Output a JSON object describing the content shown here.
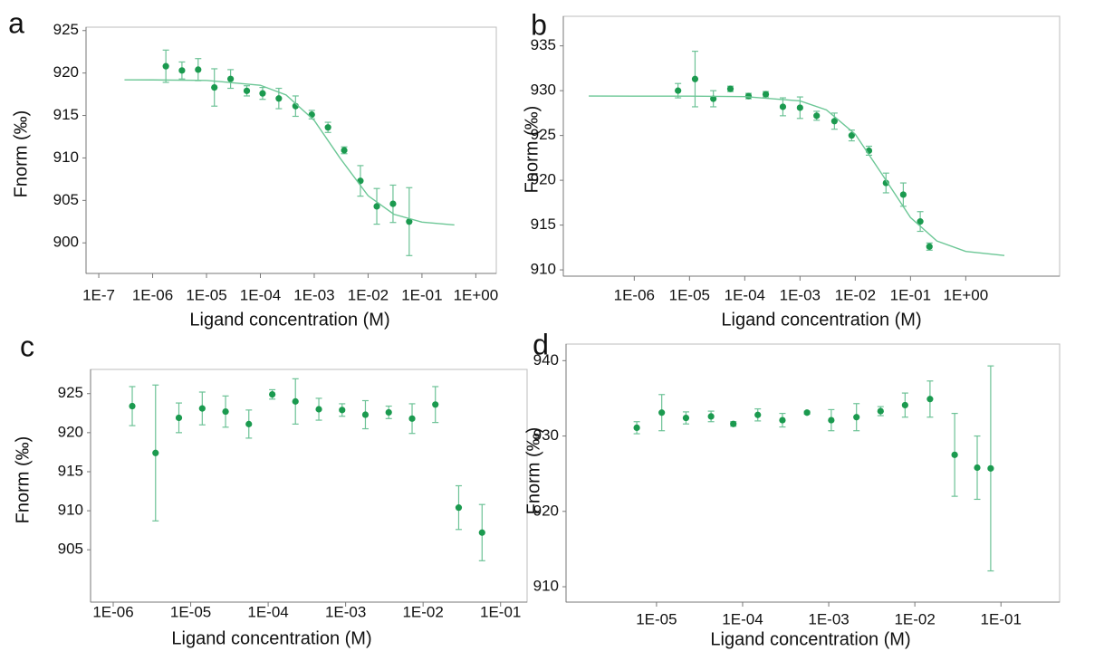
{
  "chart_data": [
    {
      "type": "scatter",
      "label": "a",
      "xlabel": "Ligand concentration (M)",
      "ylabel": "Fnorm (‰)",
      "xscale": "log",
      "xlim": [
        5.8e-08,
        2.4
      ],
      "xticks": [
        {
          "value": 1e-07,
          "label": "1E-7"
        },
        {
          "value": 1e-06,
          "label": "1E-06"
        },
        {
          "value": 1e-05,
          "label": "1E-05"
        },
        {
          "value": 0.0001,
          "label": "1E-04"
        },
        {
          "value": 0.001,
          "label": "1E-03"
        },
        {
          "value": 0.01,
          "label": "1E-02"
        },
        {
          "value": 0.1,
          "label": "1E-01"
        },
        {
          "value": 1,
          "label": "1E+00"
        }
      ],
      "ylim": [
        896.4,
        925.4
      ],
      "yticks": [
        900,
        905,
        910,
        915,
        920,
        925
      ],
      "series": [
        {
          "type": "errorbar",
          "color": "#1b9a4f",
          "errcolor": "#6cc296",
          "x": [
            1.76e-06,
            3.5e-06,
            7e-06,
            1.4e-05,
            2.8e-05,
            5.6e-05,
            0.00011,
            0.00022,
            0.00045,
            0.0009,
            0.0018,
            0.0036,
            0.0072,
            0.0145,
            0.029,
            0.058
          ],
          "values": [
            920.8,
            920.3,
            920.4,
            918.3,
            919.3,
            917.9,
            917.6,
            917.0,
            916.1,
            915.1,
            913.6,
            910.9,
            907.3,
            904.3,
            904.6,
            902.5
          ],
          "errors": [
            1.9,
            1.0,
            1.3,
            2.2,
            1.1,
            0.6,
            0.7,
            1.2,
            1.2,
            0.5,
            0.6,
            0.4,
            1.8,
            2.1,
            2.2,
            4.0
          ]
        },
        {
          "type": "line",
          "color": "#6cc796",
          "x": [
            3e-07,
            1e-06,
            1e-05,
            0.0001,
            0.0003,
            0.001,
            0.003,
            0.01,
            0.03,
            0.1,
            0.4
          ],
          "values": [
            919.2,
            919.19,
            919.13,
            918.56,
            917.42,
            914.42,
            910.0,
            905.55,
            903.37,
            902.44,
            902.11
          ]
        }
      ]
    },
    {
      "type": "scatter",
      "label": "b",
      "xlabel": "Ligand concentration (M)",
      "ylabel": "Fnorm (‰)",
      "xscale": "log",
      "xlim": [
        5.2e-08,
        50
      ],
      "xticks": [
        {
          "value": 1e-06,
          "label": "1E-06"
        },
        {
          "value": 1e-05,
          "label": "1E-05"
        },
        {
          "value": 0.0001,
          "label": "1E-04"
        },
        {
          "value": 0.001,
          "label": "1E-03"
        },
        {
          "value": 0.01,
          "label": "1E-02"
        },
        {
          "value": 0.1,
          "label": "1E-01"
        },
        {
          "value": 1,
          "label": "1E+00"
        }
      ],
      "ylim": [
        909.3,
        938.3
      ],
      "yticks": [
        910,
        915,
        920,
        925,
        930,
        935
      ],
      "series": [
        {
          "type": "errorbar",
          "color": "#1b9a4f",
          "errcolor": "#6cc296",
          "x": [
            6.2e-06,
            1.26e-05,
            2.7e-05,
            5.5e-05,
            0.000117,
            0.00024,
            0.00049,
            0.001,
            0.002,
            0.0042,
            0.0086,
            0.0177,
            0.036,
            0.074,
            0.15,
            0.22
          ],
          "values": [
            930.0,
            931.3,
            929.1,
            930.2,
            929.4,
            929.6,
            928.2,
            928.1,
            927.2,
            926.6,
            925.0,
            923.3,
            919.7,
            918.4,
            915.4,
            912.6
          ],
          "errors": [
            0.8,
            3.1,
            0.9,
            0.3,
            0.3,
            0.3,
            1.0,
            1.2,
            0.5,
            0.9,
            0.6,
            0.5,
            1.1,
            1.3,
            1.1,
            0.4
          ]
        },
        {
          "type": "line",
          "color": "#6cc796",
          "x": [
            1.5e-07,
            1e-06,
            1e-05,
            0.0001,
            0.001,
            0.003,
            0.01,
            0.03,
            0.1,
            0.3,
            1,
            5
          ],
          "values": [
            929.4,
            929.39,
            929.39,
            929.34,
            928.86,
            927.86,
            925.14,
            920.74,
            915.84,
            913.23,
            912.06,
            911.61
          ]
        }
      ]
    },
    {
      "type": "scatter",
      "label": "c",
      "xlabel": "Ligand concentration (M)",
      "ylabel": "Fnorm (‰)",
      "xscale": "log",
      "xlim": [
        5.1e-07,
        0.22
      ],
      "xticks": [
        {
          "value": 1e-06,
          "label": "1E-06"
        },
        {
          "value": 1e-05,
          "label": "1E-05"
        },
        {
          "value": 0.0001,
          "label": "1E-04"
        },
        {
          "value": 0.001,
          "label": "1E-03"
        },
        {
          "value": 0.01,
          "label": "1E-02"
        },
        {
          "value": 0.1,
          "label": "1E-01"
        }
      ],
      "ylim": [
        898.3,
        928.1
      ],
      "yticks": [
        905,
        910,
        915,
        920,
        925
      ],
      "series": [
        {
          "type": "errorbar",
          "color": "#1b9a4f",
          "errcolor": "#6cc296",
          "x": [
            1.76e-06,
            3.52e-06,
            7.04e-06,
            1.41e-05,
            2.82e-05,
            5.63e-05,
            0.000113,
            0.000225,
            0.000451,
            0.000901,
            0.0018,
            0.0036,
            0.00721,
            0.0144,
            0.0288,
            0.0577
          ],
          "values": [
            923.4,
            917.4,
            921.9,
            923.1,
            922.7,
            921.1,
            924.9,
            924.0,
            923.0,
            922.9,
            922.3,
            922.6,
            921.8,
            923.6,
            910.4,
            907.2
          ],
          "errors": [
            2.5,
            8.7,
            1.9,
            2.1,
            2.0,
            1.8,
            0.6,
            2.9,
            1.4,
            0.8,
            1.8,
            0.8,
            1.9,
            2.3,
            2.8,
            3.6
          ]
        }
      ]
    },
    {
      "type": "scatter",
      "label": "d",
      "xlabel": "Ligand concentration (M)",
      "ylabel": "Fnorm (‰)",
      "xscale": "log",
      "xlim": [
        8.9e-07,
        0.48
      ],
      "xticks": [
        {
          "value": 1e-05,
          "label": "1E-05"
        },
        {
          "value": 0.0001,
          "label": "1E-04"
        },
        {
          "value": 0.001,
          "label": "1E-03"
        },
        {
          "value": 0.01,
          "label": "1E-02"
        },
        {
          "value": 0.1,
          "label": "1E-01"
        }
      ],
      "ylim": [
        907.96,
        942.2
      ],
      "yticks": [
        910,
        920,
        930,
        940
      ],
      "series": [
        {
          "type": "errorbar",
          "color": "#1b9a4f",
          "errcolor": "#6cc296",
          "x": [
            5.9e-06,
            1.15e-05,
            2.2e-05,
            4.3e-05,
            7.8e-05,
            0.00015,
            0.00029,
            0.00056,
            0.00107,
            0.0021,
            0.004,
            0.0077,
            0.015,
            0.029,
            0.053,
            0.076
          ],
          "values": [
            931.1,
            933.1,
            932.4,
            932.6,
            931.6,
            932.8,
            932.1,
            933.1,
            932.1,
            932.5,
            933.3,
            934.1,
            934.9,
            927.5,
            925.8,
            925.7
          ],
          "errors": [
            0.8,
            2.4,
            0.8,
            0.7,
            0.3,
            0.8,
            0.9,
            0.2,
            1.4,
            1.8,
            0.6,
            1.6,
            2.4,
            5.5,
            4.2,
            13.6
          ]
        }
      ]
    }
  ]
}
